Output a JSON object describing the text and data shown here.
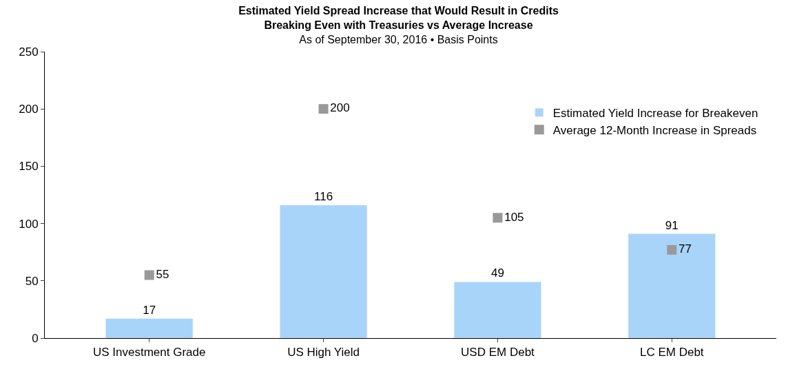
{
  "chart_data": {
    "type": "bar",
    "title": "Estimated Yield Spread Increase that Would Result in Credits\nBreaking Even with Treasuries vs Average Increase",
    "subtitle": "As of September 30, 2016 • Basis Points",
    "categories": [
      "US Investment Grade",
      "US High Yield",
      "USD EM Debt",
      "LC EM Debt"
    ],
    "series": [
      {
        "name": "Estimated Yield Increase for Breakeven",
        "color": "#a8d4fa",
        "values": [
          17,
          116,
          49,
          91
        ]
      },
      {
        "name": "Average 12-Month Increase in Spreads",
        "type": "scatter",
        "marker": "square",
        "color": "#999999",
        "values": [
          55,
          200,
          105,
          77
        ]
      }
    ],
    "ylim": [
      0,
      250
    ],
    "yticks": [
      0,
      50,
      100,
      150,
      200,
      250
    ],
    "data_labels": true,
    "legend": "top right"
  }
}
